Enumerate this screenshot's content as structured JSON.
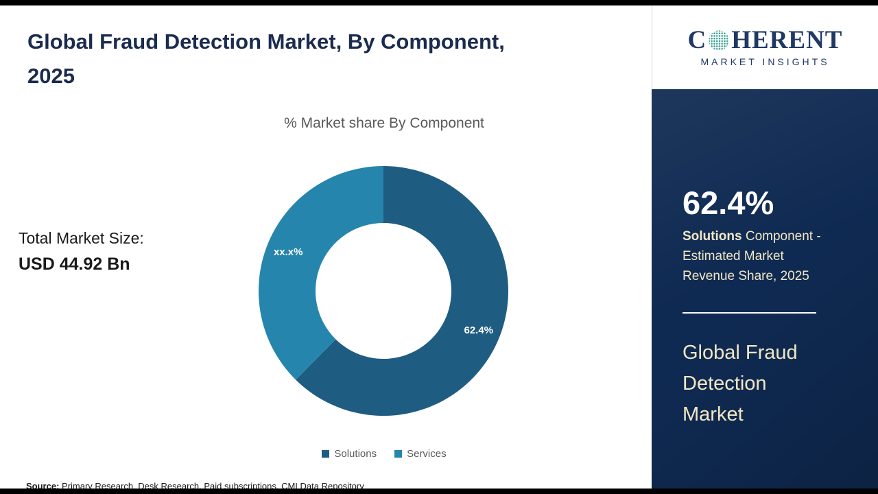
{
  "header": {
    "title_line1": "Global Fraud Detection Market, By Component,",
    "title_line2": "2025"
  },
  "main": {
    "market_size": {
      "label": "Total Market Size:",
      "value": "USD 44.92 Bn"
    },
    "source": {
      "label": "Source:",
      "text": " Primary Research, Desk Research, Paid subscriptions, CMI Data Repository"
    }
  },
  "chart_data": {
    "type": "pie",
    "donut": true,
    "title": "% Market share By Component",
    "series": [
      {
        "name": "Solutions",
        "value": 62.4,
        "label": "62.4%",
        "color": "#1F5C82"
      },
      {
        "name": "Services",
        "value": 37.6,
        "label": "xx.x%",
        "color": "#2685AD"
      }
    ],
    "legend_position": "bottom",
    "start_angle_deg": 0,
    "direction": "clockwise"
  },
  "sidebar": {
    "logo": {
      "text_before_icon": "C",
      "text_after_icon": "HERENT",
      "tagline": "MARKET INSIGHTS",
      "icon": "globe-dots-icon"
    },
    "stat_value": "62.4%",
    "stat_label_highlight": "Solutions",
    "stat_label_rest": " Component - Estimated Market Revenue Share, 2025",
    "panel_title": "Global Fraud Detection Market"
  },
  "colors": {
    "title_navy": "#1A2B4E",
    "sidebar_navy": "#0F2A52",
    "cream_text": "#F2E7C4",
    "logo_navy": "#1F3864",
    "logo_globe_teal": "#2F9E8E",
    "solutions_blue": "#1F5C82",
    "services_teal": "#2685AD"
  }
}
